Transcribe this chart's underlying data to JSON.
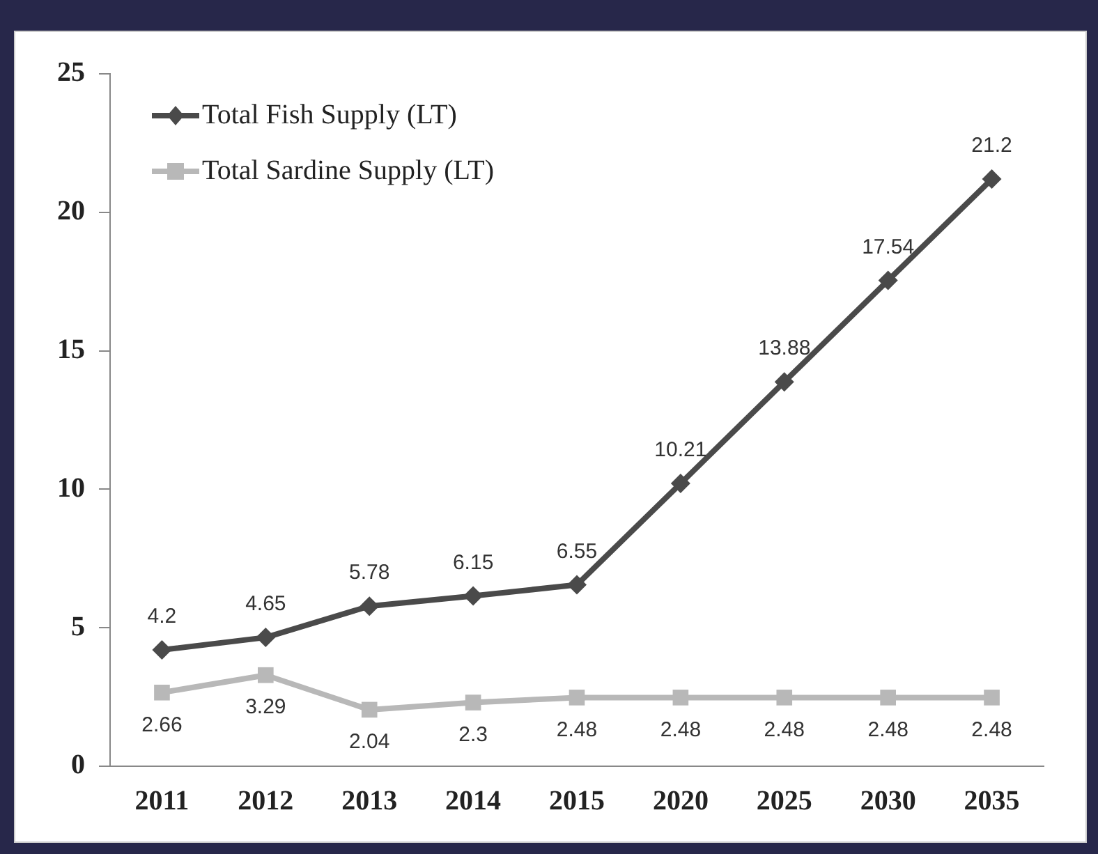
{
  "chart_data": {
    "type": "line",
    "categories": [
      "2011",
      "2012",
      "2013",
      "2014",
      "2015",
      "2020",
      "2025",
      "2030",
      "2035"
    ],
    "series": [
      {
        "name": "Total Fish Supply (LT)",
        "color": "#4a4a4a",
        "marker": "diamond",
        "values": [
          4.2,
          4.65,
          5.78,
          6.15,
          6.55,
          10.21,
          13.88,
          17.54,
          21.2
        ]
      },
      {
        "name": "Total Sardine Supply (LT)",
        "color": "#b8b8b8",
        "marker": "square",
        "values": [
          2.66,
          3.29,
          2.04,
          2.3,
          2.48,
          2.48,
          2.48,
          2.48,
          2.48
        ]
      }
    ],
    "ylim": [
      0,
      25
    ],
    "yticks": [
      0,
      5,
      10,
      15,
      20,
      25
    ],
    "grid": false,
    "legend": "top left",
    "data_labels": true
  }
}
